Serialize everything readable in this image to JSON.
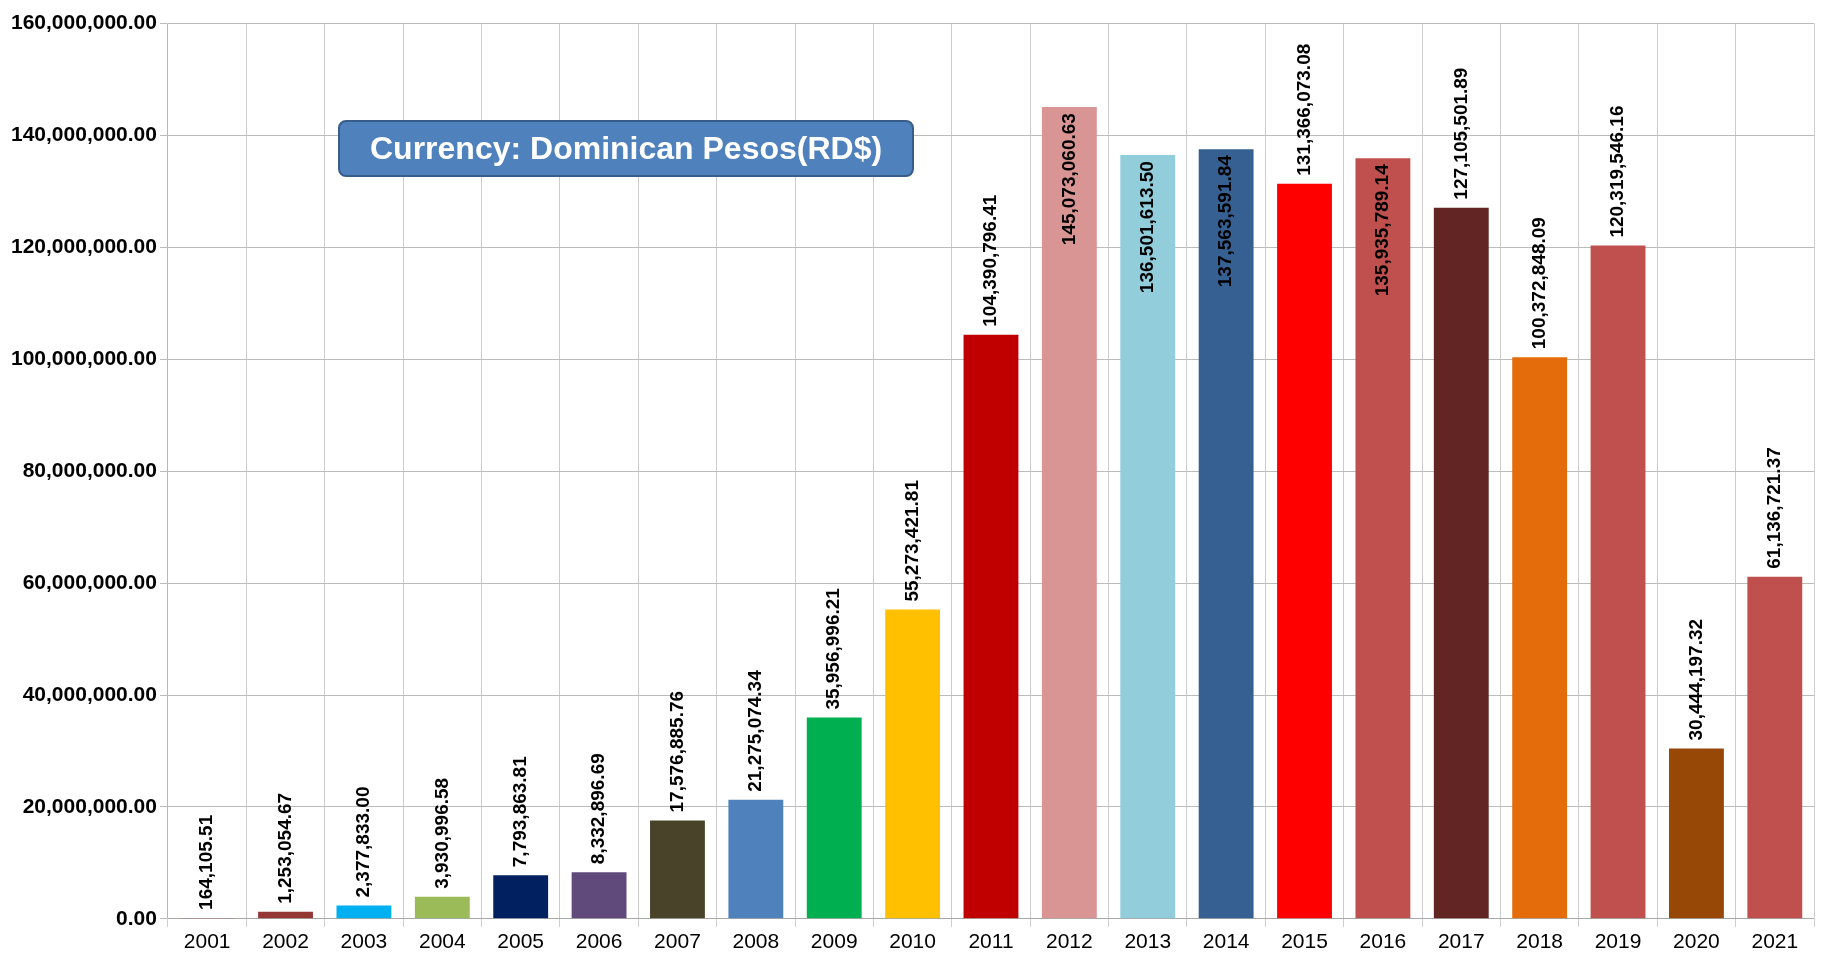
{
  "chart_data": {
    "type": "bar",
    "categories": [
      "2001",
      "2002",
      "2003",
      "2004",
      "2005",
      "2006",
      "2007",
      "2008",
      "2009",
      "2010",
      "2011",
      "2012",
      "2013",
      "2014",
      "2015",
      "2016",
      "2017",
      "2018",
      "2019",
      "2020",
      "2021"
    ],
    "values": [
      164105.51,
      1253054.67,
      2377833.0,
      3930996.58,
      7793863.81,
      8332896.69,
      17576885.76,
      21275074.34,
      35956996.21,
      55273421.81,
      104390796.41,
      145073060.63,
      136501613.5,
      137563591.84,
      131366073.08,
      135935789.14,
      127105501.89,
      100372848.09,
      120319546.16,
      30444197.32,
      61136721.37
    ],
    "colors": [
      "#c0504d",
      "#953735",
      "#00b0f0",
      "#9bbb59",
      "#002060",
      "#604a7b",
      "#494429",
      "#4f81bd",
      "#00b050",
      "#ffc000",
      "#c00000",
      "#d99594",
      "#92cddc",
      "#366092",
      "#ff0000",
      "#c0504d",
      "#632523",
      "#e46c0a",
      "#c0504d",
      "#974806",
      "#c0504d"
    ],
    "ylim": [
      0,
      160000000
    ],
    "yticks": [
      {
        "value": 0,
        "label": "0.00"
      },
      {
        "value": 20000000,
        "label": "20,000,000.00"
      },
      {
        "value": 40000000,
        "label": "40,000,000.00"
      },
      {
        "value": 60000000,
        "label": "60,000,000.00"
      },
      {
        "value": 80000000,
        "label": "80,000,000.00"
      },
      {
        "value": 100000000,
        "label": "100,000,000.00"
      },
      {
        "value": 120000000,
        "label": "120,000,000.00"
      },
      {
        "value": 140000000,
        "label": "140,000,000.00"
      },
      {
        "value": 160000000,
        "label": "160,000,000.00"
      }
    ],
    "value_labels": [
      "164,105.51",
      "1,253,054.67",
      "2,377,833.00",
      "3,930,996.58",
      "7,793,863.81",
      "8,332,896.69",
      "17,576,885.76",
      "21,275,074.34",
      "35,956,996.21",
      "55,273,421.81",
      "104,390,796.41",
      "145,073,060.63",
      "136,501,613.50",
      "137,563,591.84",
      "131,366,073.08",
      "135,935,789.14",
      "127,105,501.89",
      "100,372,848.09",
      "120,319,546.16",
      "30,444,197.32",
      "61,136,721.37"
    ],
    "grid": true,
    "annotations": [
      "Currency: Dominican Pesos(RD$)"
    ]
  }
}
